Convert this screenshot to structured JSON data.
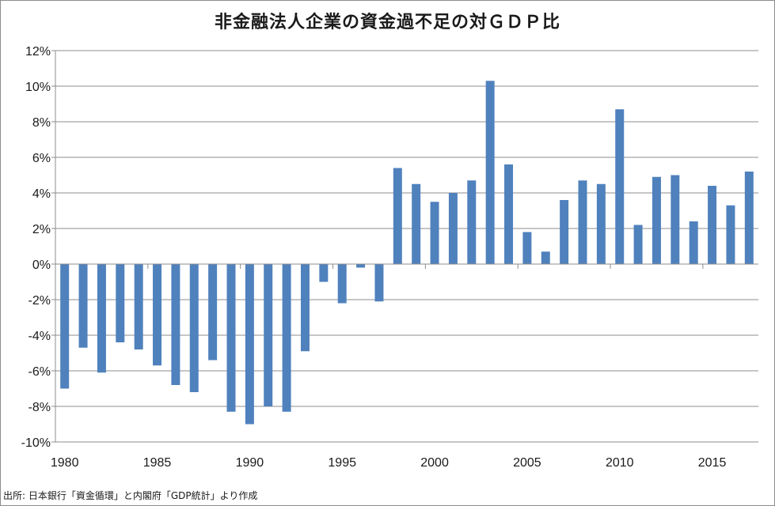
{
  "chart_data": {
    "type": "bar",
    "title": "非金融法人企業の資金過不足の対ＧＤＰ比",
    "source": "出所: 日本銀行「資金循環」と内閣府「GDP統計」より作成",
    "xlabel": "",
    "ylabel": "",
    "ylim": [
      -10,
      12
    ],
    "y_ticks": [
      12,
      10,
      8,
      6,
      4,
      2,
      0,
      -2,
      -4,
      -6,
      -8,
      -10
    ],
    "y_tick_suffix": "%",
    "x_tick_labels": [
      "1980",
      "1985",
      "1990",
      "1995",
      "2000",
      "2005",
      "2010",
      "2015"
    ],
    "grid": "horizontal",
    "bar_color": "#4f81bd",
    "categories": [
      1980,
      1981,
      1982,
      1983,
      1984,
      1985,
      1986,
      1987,
      1988,
      1989,
      1990,
      1991,
      1992,
      1993,
      1994,
      1995,
      1996,
      1997,
      1998,
      1999,
      2000,
      2001,
      2002,
      2003,
      2004,
      2005,
      2006,
      2007,
      2008,
      2009,
      2010,
      2011,
      2012,
      2013,
      2014,
      2015,
      2016,
      2017
    ],
    "values": [
      -7.0,
      -4.7,
      -6.1,
      -4.4,
      -4.8,
      -5.7,
      -6.8,
      -7.2,
      -5.4,
      -8.3,
      -9.0,
      -8.0,
      -8.3,
      -4.9,
      -1.0,
      -2.2,
      -0.2,
      -2.1,
      5.4,
      4.5,
      3.5,
      4.0,
      4.7,
      10.3,
      5.6,
      1.8,
      0.7,
      3.6,
      4.7,
      4.5,
      8.7,
      2.2,
      4.9,
      5.0,
      2.4,
      4.4,
      3.3,
      5.2
    ]
  }
}
